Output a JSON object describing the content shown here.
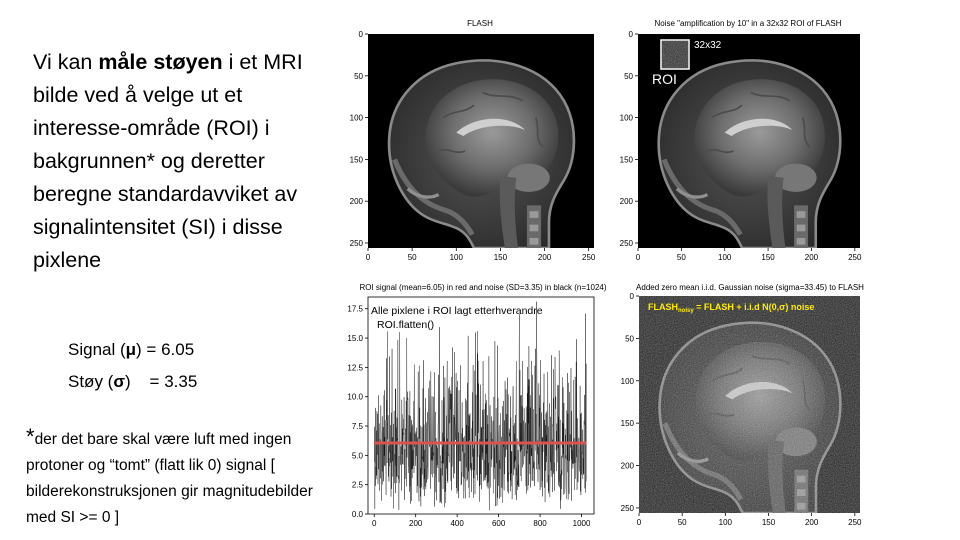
{
  "left_text": {
    "intro_prefix": "Vi kan ",
    "intro_bold": "måle støyen",
    "intro_rest": " i et MRI bilde ved å velge ut et interesse-område (ROI) i bakgrunnen* og deretter beregne standardavviket av signalintensitet (SI) i disse pixlene",
    "signal_label": "Signal (",
    "signal_symbol": "μ",
    "signal_value": ") = 6.05",
    "noise_label": "Støy (",
    "noise_symbol": "σ",
    "noise_value": ")    = 3.35",
    "footnote_star": "*",
    "footnote_text": "der det bare skal være luft med ingen protoner og “tomt” (flatt lik 0) signal [ bilderekonstruksjonen gir magnitudebilder med SI >= 0 ]"
  },
  "panels": {
    "flash": {
      "title": "FLASH",
      "x_ticks": [
        "0",
        "50",
        "100",
        "150",
        "200",
        "250"
      ],
      "y_ticks": [
        "0",
        "50",
        "100",
        "150",
        "200",
        "250"
      ]
    },
    "roi_panel": {
      "title": "Noise \"amplification by 10\" in a 32x32 ROI of FLASH",
      "roi_size_label": "32x32",
      "roi_label": "ROI",
      "x_ticks": [
        "0",
        "50",
        "100",
        "150",
        "200",
        "250"
      ],
      "y_ticks": [
        "0",
        "50",
        "100",
        "150",
        "200",
        "250"
      ]
    },
    "noisy": {
      "title": "Added zero mean i.i.d. Gaussian noise (sigma=33.45) to FLASH",
      "annotation_main": "FLASH",
      "annotation_sub": "noisy",
      "annotation_rest": " = FLASH  +  i.i.d N(0,σ) noise",
      "x_ticks": [
        "0",
        "50",
        "100",
        "150",
        "200",
        "250"
      ],
      "y_ticks": [
        "0",
        "50",
        "100",
        "150",
        "200",
        "250"
      ],
      "annotation_color": "#ffee00"
    }
  },
  "chart_data": {
    "type": "line",
    "title": "ROI signal (mean=6.05) in red and noise (SD=3.35) in black (n=1024)",
    "annotation_line1": "Alle pixlene i ROI lagt etterhverandre",
    "annotation_line2": "ROI.flatten()",
    "n": 1024,
    "mean": 6.05,
    "sd": 3.35,
    "xlim": [
      -30,
      1060
    ],
    "ylim": [
      0,
      18.5
    ],
    "x_ticks": [
      "0",
      "200",
      "400",
      "600",
      "800",
      "1000"
    ],
    "y_ticks": [
      "0.0",
      "2.5",
      "5.0",
      "7.5",
      "10.0",
      "12.5",
      "15.0",
      "17.5"
    ],
    "series": [
      {
        "color": "#000000",
        "values_note": "noise"
      },
      {
        "color": "#d9534f",
        "values_note": "mean"
      }
    ]
  }
}
